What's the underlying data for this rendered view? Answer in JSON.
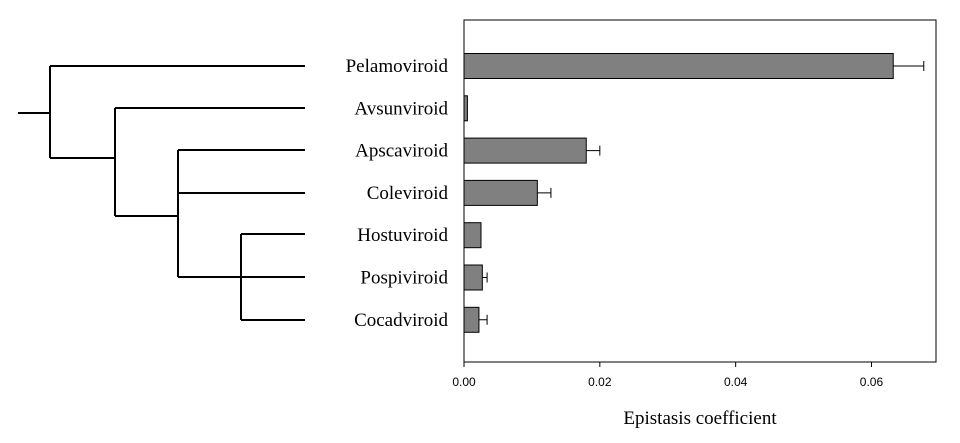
{
  "chart_data": {
    "type": "bar",
    "orientation": "horizontal",
    "categories": [
      "Pelamoviroid",
      "Avsunviroid",
      "Apscaviroid",
      "Coleviroid",
      "Hostuviroid",
      "Pospiviroid",
      "Cocadviroid"
    ],
    "values": [
      0.0632,
      0.0005,
      0.018,
      0.0108,
      0.0025,
      0.0027,
      0.0022
    ],
    "errors": [
      0.0045,
      0.0,
      0.002,
      0.002,
      0.0,
      0.0007,
      0.0012
    ],
    "xlabel": "Epistasis coefficient",
    "xlim": [
      0.0,
      0.0695
    ],
    "xticks": [
      "0.00",
      "0.02",
      "0.04",
      "0.06"
    ],
    "xtick_values": [
      0.0,
      0.02,
      0.04,
      0.06
    ],
    "bar_color": "#808080",
    "tree_shown": true
  }
}
